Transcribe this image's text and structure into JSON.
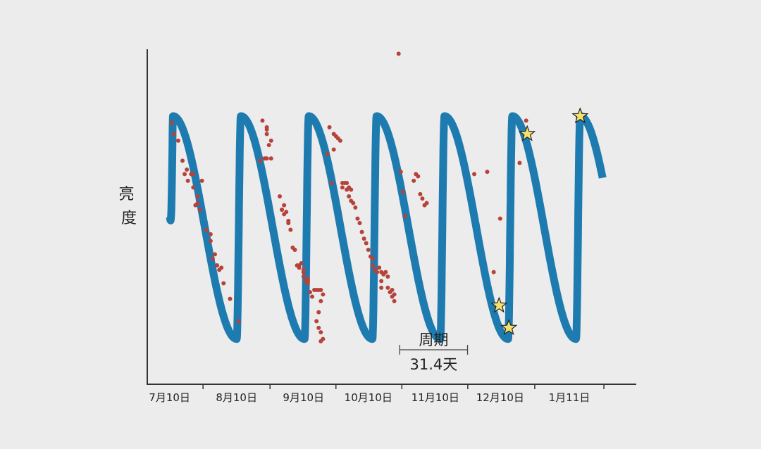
{
  "chart_data": {
    "type": "line",
    "title": "",
    "ylabel": "亮度",
    "xlabel": "",
    "x_tick_labels": [
      "7月10日",
      "8月10日",
      "9月10日",
      "10月10日",
      "11月10日",
      "12月10日",
      "1月11日"
    ],
    "x_tick_days": [
      0,
      31,
      62,
      92,
      123,
      153,
      185
    ],
    "xlim": [
      -9,
      215
    ],
    "ylim": [
      -0.2,
      1.3
    ],
    "y_ticks_shown": false,
    "grid": false,
    "legend": "none",
    "series": [
      {
        "type": "line",
        "description_color": "#1e7bb0",
        "period_days": 31.4,
        "x_start_day": 0,
        "x_end_day": 200.5,
        "curve_start_value": 0.55
      },
      {
        "type": "scatter",
        "description_color": "#b5433a",
        "points": [
          [
            1,
            0.97
          ],
          [
            2,
            0.92
          ],
          [
            4,
            0.89
          ],
          [
            6,
            0.8
          ],
          [
            7,
            0.74
          ],
          [
            8,
            0.76
          ],
          [
            8.5,
            0.71
          ],
          [
            10,
            0.74
          ],
          [
            11,
            0.74
          ],
          [
            11,
            0.68
          ],
          [
            12,
            0.6
          ],
          [
            13,
            0.61
          ],
          [
            13,
            0.64
          ],
          [
            14,
            0.58
          ],
          [
            15,
            0.71
          ],
          [
            17,
            0.49
          ],
          [
            19,
            0.47
          ],
          [
            19,
            0.44
          ],
          [
            20,
            0.36
          ],
          [
            21,
            0.38
          ],
          [
            22,
            0.33
          ],
          [
            22,
            0.33
          ],
          [
            23,
            0.31
          ],
          [
            24,
            0.32
          ],
          [
            25,
            0.25
          ],
          [
            28,
            0.18
          ],
          [
            32,
            0.08
          ],
          [
            43,
            0.98
          ],
          [
            45,
            0.94
          ],
          [
            45,
            0.92
          ],
          [
            45,
            0.95
          ],
          [
            46,
            0.87
          ],
          [
            47,
            0.89
          ],
          [
            44,
            0.81
          ],
          [
            45,
            0.81
          ],
          [
            47,
            0.81
          ],
          [
            42,
            0.8
          ],
          [
            51,
            0.64
          ],
          [
            53,
            0.6
          ],
          [
            53,
            0.56
          ],
          [
            52,
            0.58
          ],
          [
            52,
            0.58
          ],
          [
            54,
            0.57
          ],
          [
            55,
            0.53
          ],
          [
            55,
            0.52
          ],
          [
            56,
            0.49
          ],
          [
            57,
            0.41
          ],
          [
            58,
            0.4
          ],
          [
            59,
            0.33
          ],
          [
            60,
            0.33
          ],
          [
            60,
            0.32
          ],
          [
            61,
            0.34
          ],
          [
            62,
            0.3
          ],
          [
            62,
            0.31
          ],
          [
            62,
            0.28
          ],
          [
            63,
            0.26
          ],
          [
            64,
            0.27
          ],
          [
            64,
            0.26
          ],
          [
            64,
            0.25
          ],
          [
            65,
            0.21
          ],
          [
            66,
            0.19
          ],
          [
            67,
            0.22
          ],
          [
            68,
            0.22
          ],
          [
            69,
            0.22
          ],
          [
            70,
            0.22
          ],
          [
            71,
            0.2
          ],
          [
            70,
            0.17
          ],
          [
            69,
            0.12
          ],
          [
            68,
            0.08
          ],
          [
            69,
            0.05
          ],
          [
            70,
            0.03
          ],
          [
            71,
            0.0
          ],
          [
            70,
            -0.01
          ],
          [
            74,
            0.95
          ],
          [
            76,
            0.92
          ],
          [
            77,
            0.91
          ],
          [
            78,
            0.9
          ],
          [
            79,
            0.89
          ],
          [
            76,
            0.85
          ],
          [
            73,
            0.83
          ],
          [
            75,
            0.7
          ],
          [
            80,
            0.7
          ],
          [
            80,
            0.68
          ],
          [
            81,
            0.7
          ],
          [
            82,
            0.7
          ],
          [
            82,
            0.67
          ],
          [
            83,
            0.68
          ],
          [
            84,
            0.67
          ],
          [
            83,
            0.64
          ],
          [
            84,
            0.62
          ],
          [
            85,
            0.61
          ],
          [
            86,
            0.59
          ],
          [
            87,
            0.54
          ],
          [
            88,
            0.52
          ],
          [
            89,
            0.48
          ],
          [
            90,
            0.45
          ],
          [
            91,
            0.43
          ],
          [
            92,
            0.4
          ],
          [
            93,
            0.37
          ],
          [
            94,
            0.36
          ],
          [
            94,
            0.33
          ],
          [
            95,
            0.31
          ],
          [
            96,
            0.3
          ],
          [
            97,
            0.32
          ],
          [
            98,
            0.3
          ],
          [
            99,
            0.29
          ],
          [
            100,
            0.3
          ],
          [
            101,
            0.28
          ],
          [
            98,
            0.26
          ],
          [
            98,
            0.23
          ],
          [
            101,
            0.23
          ],
          [
            102,
            0.21
          ],
          [
            103,
            0.22
          ],
          [
            104,
            0.2
          ],
          [
            103,
            0.19
          ],
          [
            104,
            0.17
          ],
          [
            106,
            1.28
          ],
          [
            107,
            0.75
          ],
          [
            108,
            0.66
          ],
          [
            109,
            0.55
          ],
          [
            113,
            0.71
          ],
          [
            114,
            0.74
          ],
          [
            115,
            0.73
          ],
          [
            116,
            0.65
          ],
          [
            117,
            0.63
          ],
          [
            118,
            0.6
          ],
          [
            119,
            0.61
          ],
          [
            141,
            0.74
          ],
          [
            147,
            0.75
          ],
          [
            150,
            0.3
          ],
          [
            153,
            0.54
          ],
          [
            162,
            0.79
          ],
          [
            165,
            0.98
          ]
        ]
      },
      {
        "type": "scatter",
        "marker": "star",
        "description_color": "#f4e06e",
        "points": [
          [
            152.5,
            0.15
          ],
          [
            157,
            0.05
          ],
          [
            165.5,
            0.92
          ],
          [
            190,
            1.0
          ]
        ]
      }
    ],
    "annotations": [
      {
        "type": "bracket",
        "title": "周期",
        "value_text": "31.4天",
        "x_from_day": 106.5,
        "x_to_day": 137.9
      }
    ]
  }
}
